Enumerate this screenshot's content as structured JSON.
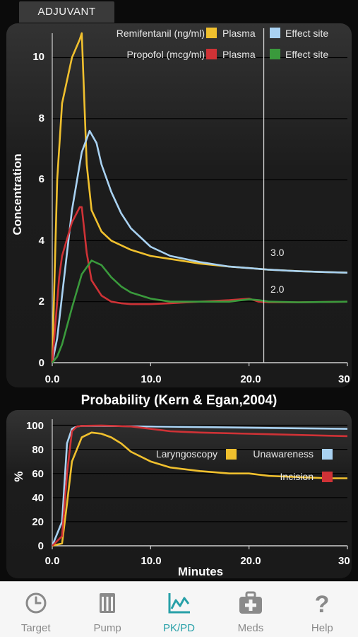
{
  "header": {
    "tab_label": "ADJUVANT"
  },
  "concentration_chart": {
    "ylabel": "Concentration",
    "x_ticks": [
      "0.0",
      "10.0",
      "20.0",
      "30"
    ],
    "y_ticks": [
      "0",
      "2",
      "4",
      "6",
      "8",
      "10"
    ],
    "legend": {
      "remi_label": "Remifentanil (ng/ml)",
      "propofol_label": "Propofol (mcg/ml)",
      "plasma": "Plasma",
      "effect_site": "Effect site"
    },
    "cursor_labels": {
      "remi_value": "3.0",
      "propofol_value": "2.0"
    }
  },
  "probability_title": "Probability (Kern & Egan,2004)",
  "probability_chart": {
    "ylabel": "%",
    "xlabel": "Minutes",
    "x_ticks": [
      "0.0",
      "10.0",
      "20.0",
      "30"
    ],
    "y_ticks": [
      "0",
      "20",
      "40",
      "60",
      "80",
      "100"
    ],
    "legend": {
      "laryngoscopy": "Laryngoscopy",
      "unawareness": "Unawareness",
      "incision": "Incision"
    }
  },
  "colors": {
    "remi_plasma": "#f0c02e",
    "remi_effect": "#a9d2f2",
    "propofol_plasma": "#cf3236",
    "propofol_effect": "#3a9a3c",
    "laryngoscopy": "#f0c02e",
    "unawareness": "#a9d2f2",
    "incision": "#cf3236",
    "active_tab": "#27a0a8"
  },
  "chart_data": [
    {
      "type": "line",
      "ylabel": "Concentration",
      "xlim": [
        0,
        30
      ],
      "ylim": [
        0,
        10.8
      ],
      "cursor_x": 21.5,
      "series": [
        {
          "name": "Remifentanil (ng/ml) Plasma",
          "color": "#f0c02e",
          "x": [
            0,
            0.5,
            1,
            2,
            2.8,
            3,
            3.5,
            4,
            5,
            6,
            8,
            10,
            12,
            15,
            18,
            20,
            22,
            25,
            28,
            30
          ],
          "y": [
            0,
            6.0,
            8.5,
            10.0,
            10.6,
            10.8,
            6.5,
            5.0,
            4.3,
            4.0,
            3.7,
            3.5,
            3.4,
            3.25,
            3.15,
            3.1,
            3.05,
            3.0,
            2.97,
            2.95
          ]
        },
        {
          "name": "Remifentanil (ng/ml) Effect site",
          "color": "#a9d2f2",
          "x": [
            0,
            0.5,
            1,
            2,
            3,
            3.8,
            4.5,
            5,
            6,
            7,
            8,
            10,
            12,
            15,
            18,
            20,
            22,
            25,
            28,
            30
          ],
          "y": [
            0,
            0.8,
            2.2,
            5.0,
            6.9,
            7.6,
            7.2,
            6.5,
            5.6,
            4.9,
            4.4,
            3.8,
            3.5,
            3.3,
            3.15,
            3.1,
            3.05,
            3.0,
            2.97,
            2.95
          ]
        },
        {
          "name": "Propofol (mcg/ml) Plasma",
          "color": "#cf3236",
          "x": [
            0,
            0.3,
            0.7,
            1,
            2,
            2.8,
            3,
            3.5,
            4,
            5,
            6,
            7,
            8,
            10,
            12,
            15,
            18,
            20,
            21,
            22,
            25,
            28,
            30
          ],
          "y": [
            0,
            1.2,
            2.8,
            3.5,
            4.6,
            5.1,
            5.1,
            3.6,
            2.7,
            2.2,
            2.0,
            1.95,
            1.92,
            1.92,
            1.95,
            2.0,
            2.05,
            2.1,
            2.0,
            1.98,
            1.98,
            1.99,
            2.0
          ]
        },
        {
          "name": "Propofol (mcg/ml) Effect site",
          "color": "#3a9a3c",
          "x": [
            0,
            0.5,
            1,
            2,
            3,
            4,
            5,
            6,
            7,
            8,
            10,
            12,
            15,
            18,
            20,
            21,
            22,
            25,
            28,
            30
          ],
          "y": [
            0,
            0.2,
            0.6,
            1.8,
            2.9,
            3.35,
            3.2,
            2.8,
            2.5,
            2.3,
            2.1,
            2.0,
            2.0,
            2.0,
            2.08,
            2.05,
            2.0,
            1.98,
            1.99,
            2.0
          ]
        }
      ]
    },
    {
      "type": "line",
      "ylabel": "%",
      "xlabel": "Minutes",
      "xlim": [
        0,
        30
      ],
      "ylim": [
        0,
        105
      ],
      "series": [
        {
          "name": "Laryngoscopy",
          "color": "#f0c02e",
          "x": [
            0,
            1,
            1.5,
            2,
            3,
            4,
            5,
            6,
            7,
            8,
            10,
            12,
            15,
            18,
            20,
            22,
            25,
            28,
            30
          ],
          "y": [
            0,
            2,
            35,
            70,
            90,
            94,
            93,
            90,
            85,
            78,
            70,
            65,
            62,
            60,
            60,
            58,
            57,
            56,
            56
          ]
        },
        {
          "name": "Unawareness",
          "color": "#a9d2f2",
          "x": [
            0,
            1,
            1.5,
            2,
            2.5,
            3,
            5,
            10,
            15,
            20,
            25,
            30
          ],
          "y": [
            0,
            20,
            85,
            97,
            99,
            99.5,
            99.5,
            99,
            98.5,
            98,
            97.5,
            97
          ]
        },
        {
          "name": "Incision",
          "color": "#cf3236",
          "x": [
            0,
            1,
            1.5,
            2,
            2.5,
            3,
            5,
            8,
            10,
            12,
            15,
            20,
            25,
            30
          ],
          "y": [
            0,
            8,
            60,
            95,
            99,
            99.5,
            99.8,
            99,
            97,
            95,
            94,
            93,
            92,
            91
          ]
        }
      ]
    }
  ],
  "tabs": [
    {
      "label": "Target",
      "icon": "clock-icon"
    },
    {
      "label": "Pump",
      "icon": "pump-icon"
    },
    {
      "label": "PK/PD",
      "icon": "chart-icon"
    },
    {
      "label": "Meds",
      "icon": "medkit-icon"
    },
    {
      "label": "Help",
      "icon": "help-icon"
    }
  ]
}
